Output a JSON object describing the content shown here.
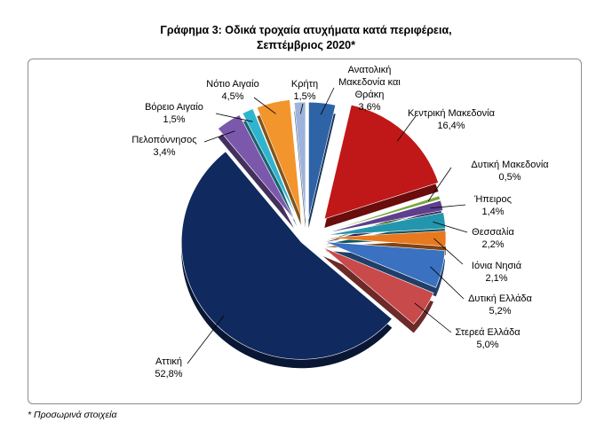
{
  "title_line1": "Γράφημα 3: Οδικά τροχαία ατυχήματα κατά περιφέρεια,",
  "title_line2": "Σεπτέμβριος 2020*",
  "footnote": "* Προσωρινά στοιχεία",
  "chart_data": {
    "type": "pie",
    "title": "Γράφημα 3: Οδικά τροχαία ατυχήματα κατά περιφέρεια, Σεπτέμβριος 2020*",
    "slices": [
      {
        "label": "Ανατολική Μακεδονία και Θράκη",
        "value": 3.6,
        "display": "3,6%",
        "color": "#2e63a6"
      },
      {
        "label": "Κεντρική Μακεδονία",
        "value": 16.4,
        "display": "16,4%",
        "color": "#c01818"
      },
      {
        "label": "Δυτική Μακεδονία",
        "value": 0.5,
        "display": "0,5%",
        "color": "#7aa63a"
      },
      {
        "label": "Ήπειρος",
        "value": 1.4,
        "display": "1,4%",
        "color": "#5e3f8e"
      },
      {
        "label": "Θεσσαλία",
        "value": 2.2,
        "display": "2,2%",
        "color": "#2396ad"
      },
      {
        "label": "Ιόνια Νησιά",
        "value": 2.1,
        "display": "2,1%",
        "color": "#e8791f"
      },
      {
        "label": "Δυτική Ελλάδα",
        "value": 5.2,
        "display": "5,2%",
        "color": "#3a71c0"
      },
      {
        "label": "Στερεά Ελλάδα",
        "value": 5.0,
        "display": "5,0%",
        "color": "#c84a4a"
      },
      {
        "label": "Αττική",
        "value": 52.8,
        "display": "52,8%",
        "color": "#10295e"
      },
      {
        "label": "Πελοπόννησος",
        "value": 3.4,
        "display": "3,4%",
        "color": "#7b58ab"
      },
      {
        "label": "Βόρειο Αιγαίο",
        "value": 1.5,
        "display": "1,5%",
        "color": "#2fb4cf"
      },
      {
        "label": "Νότιο Αιγαίο",
        "value": 4.5,
        "display": "4,5%",
        "color": "#f2952c"
      },
      {
        "label": "Κρήτη",
        "value": 1.5,
        "display": "1,5%",
        "color": "#9db3dc"
      }
    ]
  }
}
